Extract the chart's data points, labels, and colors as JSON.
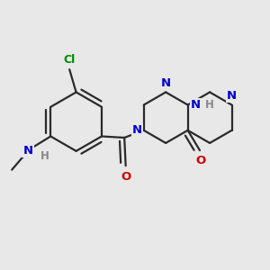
{
  "background_color": "#e8e8e8",
  "bond_color": "#2a2a2a",
  "atom_colors": {
    "N": "#0000cc",
    "O": "#cc0000",
    "Cl": "#008800",
    "H": "#888888"
  },
  "figsize": [
    3.0,
    3.0
  ],
  "dpi": 100
}
